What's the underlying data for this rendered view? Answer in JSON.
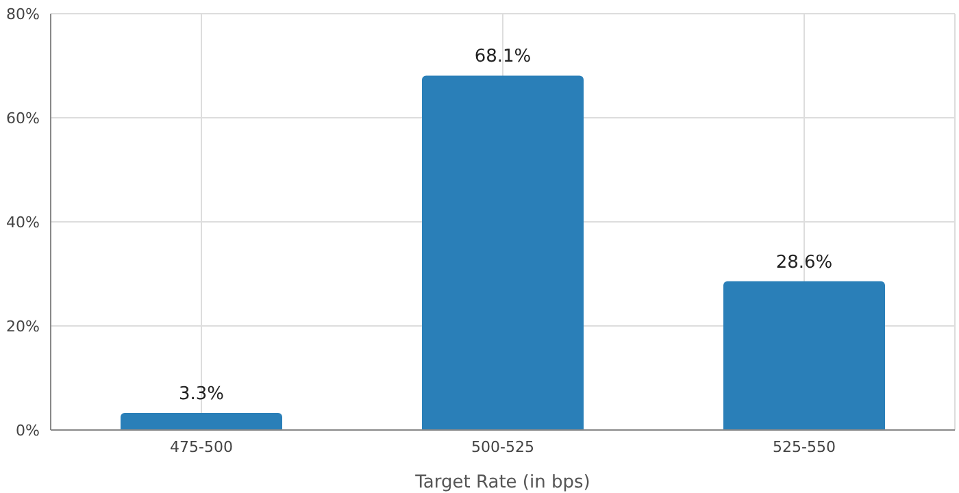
{
  "chart_data": {
    "type": "bar",
    "xlabel": "Target Rate (in bps)",
    "categories": [
      "475-500",
      "500-525",
      "525-550"
    ],
    "values": [
      3.3,
      68.1,
      28.6
    ],
    "value_labels": [
      "3.3%",
      "68.1%",
      "28.6%"
    ],
    "color": "#2a7fb8",
    "ylim": [
      0,
      80
    ],
    "yticks": [
      {
        "value": 0,
        "label": "0%"
      },
      {
        "value": 20,
        "label": "20%"
      },
      {
        "value": 40,
        "label": "40%"
      },
      {
        "value": 60,
        "label": "60%"
      },
      {
        "value": 80,
        "label": "80%"
      }
    ],
    "grid": true
  }
}
